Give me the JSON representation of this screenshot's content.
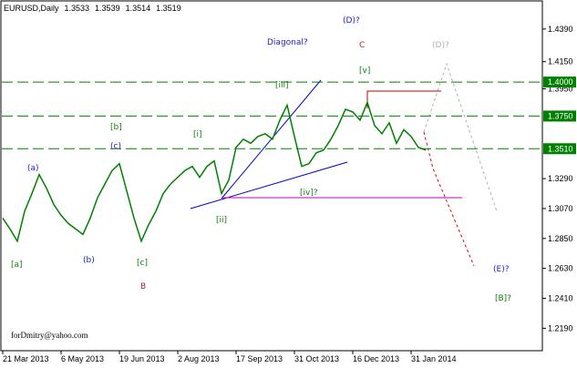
{
  "chart_data": {
    "type": "line",
    "symbol": "EURUSD,Daily",
    "ohlc": [
      1.3533,
      1.3539,
      1.3514,
      1.3519
    ],
    "categories": [
      "21 Mar 2013",
      null,
      null,
      null,
      null,
      null,
      null,
      null,
      "6 May 2013",
      null,
      null,
      null,
      null,
      null,
      null,
      null,
      "19 Jun 2013",
      null,
      null,
      null,
      null,
      null,
      null,
      null,
      "2 Aug 2013",
      null,
      null,
      null,
      null,
      null,
      null,
      null,
      "17 Sep 2013",
      null,
      null,
      null,
      null,
      null,
      null,
      null,
      "31 Oct 2013",
      null,
      null,
      null,
      null,
      null,
      null,
      null,
      "16 Dec 2013",
      null,
      null,
      null,
      null,
      null,
      null,
      null,
      "31 Jan 2014",
      null,
      null
    ],
    "series": [
      {
        "color": "#008000",
        "values": [
          1.3,
          1.292,
          1.283,
          1.305,
          1.318,
          1.332,
          1.322,
          1.31,
          1.302,
          1.296,
          1.292,
          1.288,
          1.3,
          1.315,
          1.325,
          1.335,
          1.34,
          1.32,
          1.3,
          1.283,
          1.295,
          1.305,
          1.318,
          1.325,
          1.33,
          1.335,
          1.338,
          1.33,
          1.338,
          1.342,
          1.318,
          1.328,
          1.352,
          1.358,
          1.355,
          1.36,
          1.362,
          1.358,
          1.372,
          1.383,
          1.36,
          1.338,
          1.34,
          1.348,
          1.35,
          1.358,
          1.368,
          1.38,
          1.378,
          1.372,
          1.385,
          1.368,
          1.362,
          1.37,
          1.355,
          1.365,
          1.36,
          1.352,
          1.35
        ]
      }
    ],
    "ylim": [
      1.2025,
      1.459
    ],
    "yticks": [
      {
        "value": 1.439,
        "label": "1.4390"
      },
      {
        "value": 1.415,
        "label": "1.4150"
      },
      {
        "value": 1.395,
        "label": "1.3950"
      },
      {
        "value": 1.329,
        "label": "1.3290"
      },
      {
        "value": 1.307,
        "label": "1.3070"
      },
      {
        "value": 1.285,
        "label": "1.2850"
      },
      {
        "value": 1.263,
        "label": "1.2630"
      },
      {
        "value": 1.241,
        "label": "1.2410"
      },
      {
        "value": 1.219,
        "label": "1.2190"
      }
    ],
    "levels": [
      {
        "value": 1.4,
        "label": "1.4000"
      },
      {
        "value": 1.375,
        "label": "1.3750"
      },
      {
        "value": 1.351,
        "label": "1.3510"
      }
    ],
    "annotations": [
      "[a]",
      "(a)",
      "(b)",
      "[b]",
      "(c)",
      "[c]",
      "B",
      "[i]",
      "[ii]",
      "[iii]",
      "Diagonal?",
      "[iv]?",
      "[v]",
      "C",
      "(D)?",
      "(D)?",
      "(E)?",
      "[B]?"
    ],
    "credit": "forDmitry@yahoo.com"
  }
}
